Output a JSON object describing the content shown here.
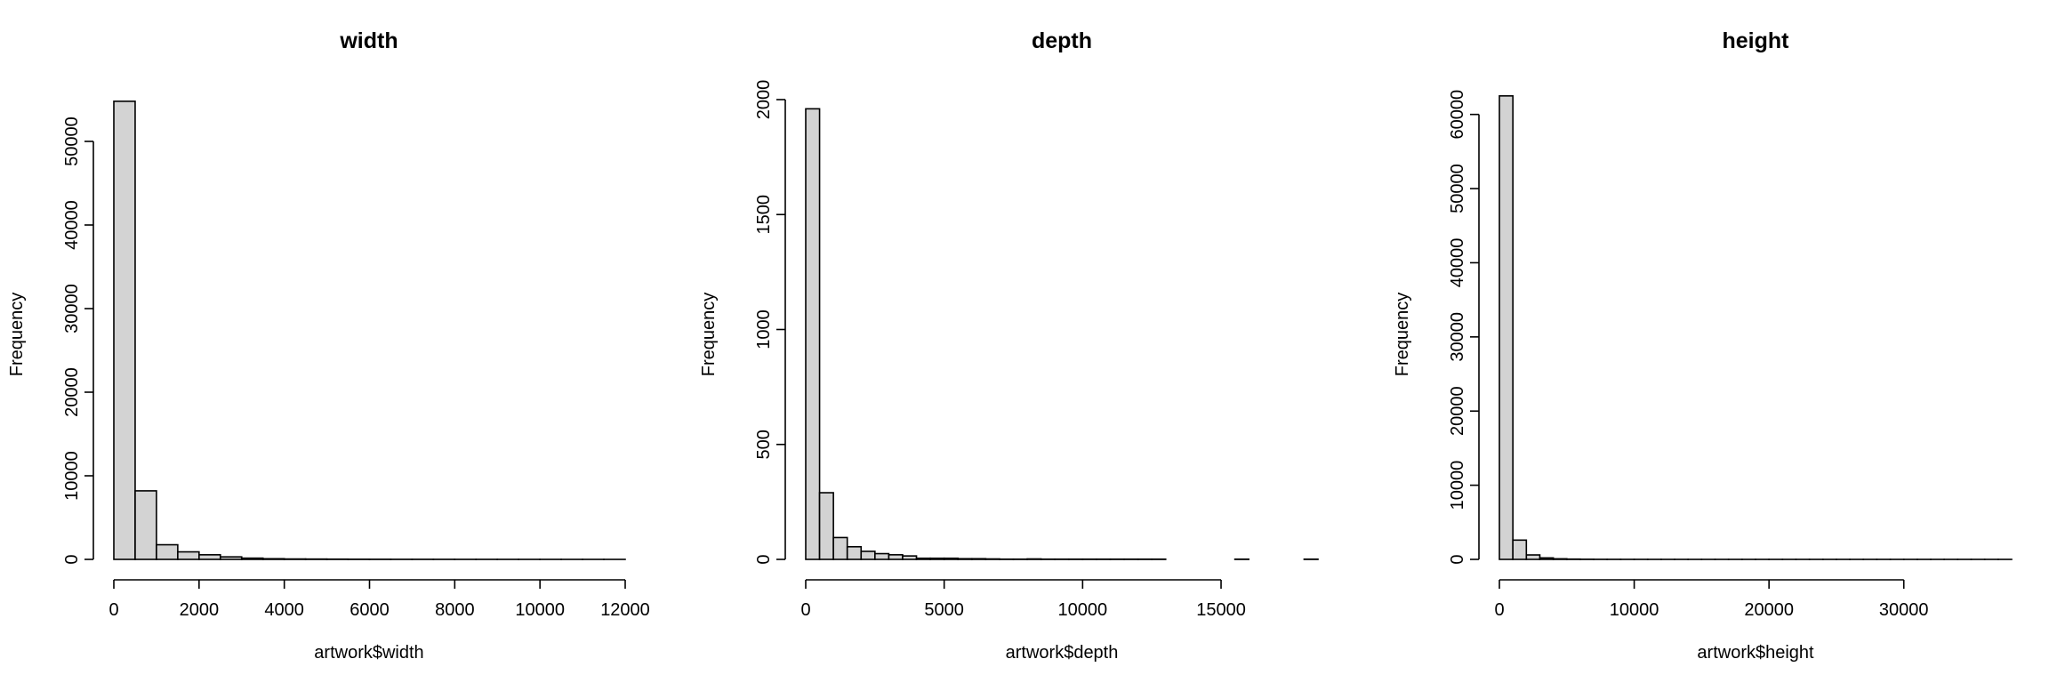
{
  "chart_data": [
    {
      "type": "bar",
      "chart_kind": "histogram",
      "title": "width",
      "xlabel": "artwork$width",
      "ylabel": "Frequency",
      "bin_width": 500,
      "bins_start": 0,
      "xlim": [
        0,
        12000
      ],
      "ylim": [
        0,
        55000
      ],
      "x_ticks": [
        0,
        2000,
        4000,
        6000,
        8000,
        10000,
        12000
      ],
      "y_ticks": [
        0,
        10000,
        20000,
        30000,
        40000,
        50000
      ],
      "values": [
        54800,
        8200,
        1750,
        900,
        550,
        300,
        150,
        80,
        50,
        40,
        30,
        20,
        15,
        10,
        10,
        8,
        5,
        5,
        4,
        3,
        3,
        2,
        2,
        1
      ],
      "grid": false,
      "legend": "none"
    },
    {
      "type": "bar",
      "chart_kind": "histogram",
      "title": "depth",
      "xlabel": "artwork$depth",
      "ylabel": "Frequency",
      "bin_width": 500,
      "bins_start": 0,
      "xlim": [
        0,
        18500
      ],
      "ylim": [
        0,
        2000
      ],
      "x_ticks": [
        0,
        5000,
        10000,
        15000
      ],
      "y_ticks": [
        0,
        500,
        1000,
        1500,
        2000
      ],
      "values": [
        1960,
        290,
        95,
        55,
        35,
        25,
        20,
        15,
        5,
        5,
        5,
        3,
        3,
        2,
        1,
        1,
        2,
        1,
        1,
        1,
        1,
        1,
        1,
        1,
        1,
        1,
        0,
        0,
        0,
        0,
        0,
        1,
        0,
        0,
        0,
        0,
        1
      ],
      "grid": false,
      "legend": "none"
    },
    {
      "type": "bar",
      "chart_kind": "histogram",
      "title": "height",
      "xlabel": "artwork$height",
      "ylabel": "Frequency",
      "bin_width": 1000,
      "bins_start": 0,
      "xlim": [
        0,
        38000
      ],
      "ylim": [
        0,
        62000
      ],
      "x_ticks": [
        0,
        10000,
        20000,
        30000
      ],
      "y_ticks": [
        0,
        10000,
        20000,
        30000,
        40000,
        50000,
        60000
      ],
      "values": [
        62500,
        2600,
        600,
        200,
        80,
        40,
        20,
        10,
        8,
        5,
        4,
        3,
        2,
        2,
        1,
        1,
        1,
        1,
        1,
        1,
        1,
        1,
        1,
        1,
        1,
        1,
        1,
        1,
        1,
        1,
        1,
        1,
        1,
        1,
        1,
        1,
        1,
        1
      ],
      "grid": false,
      "legend": "none"
    }
  ]
}
